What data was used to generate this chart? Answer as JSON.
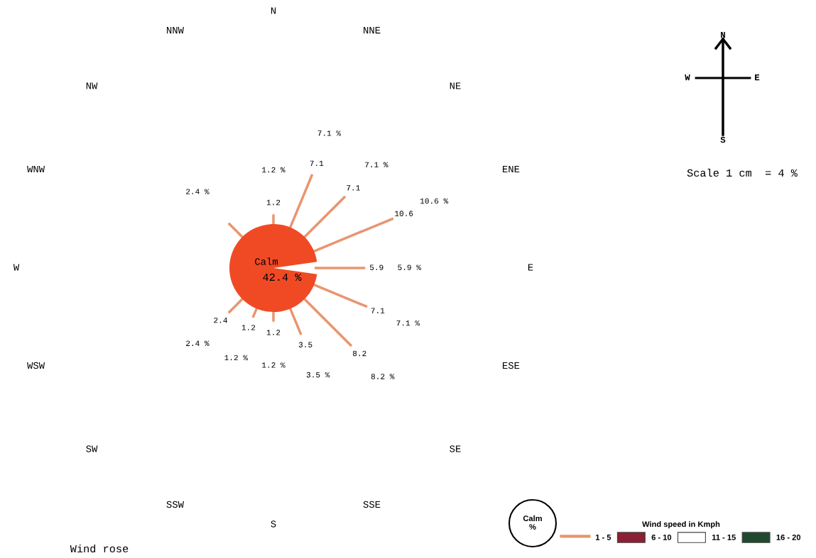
{
  "chart_data": {
    "type": "other",
    "title": "Wind rose",
    "legend_title": "Wind speed in Kmph",
    "legend": "bottom right",
    "categories": [
      "N",
      "NNE",
      "NE",
      "ENE",
      "E",
      "ESE",
      "SE",
      "SSE",
      "S",
      "SSW",
      "SW",
      "WSW",
      "W",
      "WNW",
      "NW",
      "NNW"
    ],
    "series": [
      {
        "name": "1 - 5",
        "color": "#e8956f",
        "values": [
          1.2,
          7.1,
          7.1,
          10.6,
          5.9,
          7.1,
          8.2,
          3.5,
          1.2,
          1.2,
          2.4,
          null,
          null,
          null,
          2.4,
          null
        ],
        "value_labels": [
          "1.2 %",
          "7.1 %",
          "7.1 %",
          "10.6 %",
          "5.9 %",
          "7.1 %",
          "8.2 %",
          "3.5 %",
          "1.2 %",
          "1.2 %",
          "2.4 %",
          null,
          null,
          null,
          "2.4 %",
          null
        ]
      },
      {
        "name": "6 - 10",
        "color": "#8b1f35",
        "values": [
          null,
          null,
          null,
          null,
          null,
          null,
          null,
          null,
          null,
          null,
          null,
          null,
          null,
          null,
          null,
          null
        ]
      },
      {
        "name": "11 - 15",
        "color": "#ffffff",
        "values": [
          null,
          null,
          null,
          null,
          null,
          null,
          null,
          null,
          null,
          null,
          null,
          null,
          null,
          null,
          null,
          null
        ]
      },
      {
        "name": "16 - 20",
        "color": "#1f4a30",
        "values": [
          null,
          null,
          null,
          null,
          null,
          null,
          null,
          null,
          null,
          null,
          null,
          null,
          null,
          null,
          null,
          null
        ]
      }
    ],
    "annotations": [
      "Calm",
      "42.4 %",
      "Scale 1 cm  = 4 %",
      "Calm\n%",
      "N",
      "W",
      "E",
      "S",
      {
        "text": "1.2",
        "x": "N"
      },
      {
        "text": "7.1",
        "x": "NNE"
      },
      {
        "text": "7.1",
        "x": "NE"
      },
      {
        "text": "10.6",
        "x": "ENE"
      },
      {
        "text": "5.9",
        "x": "E"
      },
      {
        "text": "7.1",
        "x": "ESE"
      },
      {
        "text": "8.2",
        "x": "SE"
      },
      {
        "text": "3.5",
        "x": "SSE"
      },
      {
        "text": "1.2",
        "x": "S"
      },
      {
        "text": "1.2",
        "x": "SSW"
      },
      {
        "text": "2.4",
        "x": "SW"
      }
    ]
  }
}
